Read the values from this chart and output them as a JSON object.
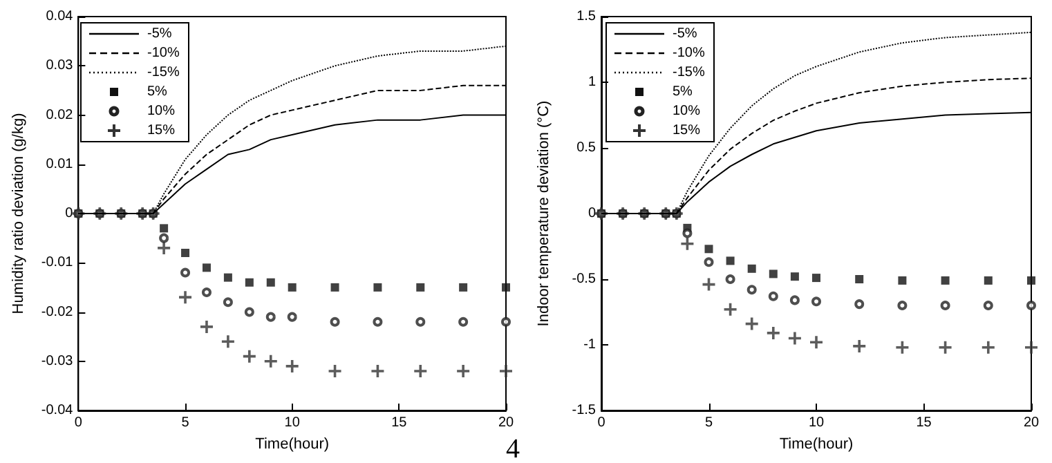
{
  "chart_data": [
    {
      "type": "line",
      "xlabel": "Time(hour)",
      "ylabel": "Humidity ratio deviation (g/kg)",
      "x": [
        0,
        1,
        2,
        3,
        3.5,
        4,
        5,
        6,
        7,
        8,
        9,
        10,
        12,
        14,
        16,
        18,
        20
      ],
      "xlim": [
        0,
        20
      ],
      "xticks": [
        0,
        5,
        10,
        15,
        20
      ],
      "ylim": [
        -0.04,
        0.04
      ],
      "yticks": [
        -0.04,
        -0.03,
        -0.02,
        -0.01,
        0,
        0.01,
        0.02,
        0.03,
        0.04
      ],
      "grid": false,
      "legend": "top left",
      "annotations": [
        "4"
      ],
      "series": [
        {
          "name": "-5%",
          "color": "#000000",
          "line_style": "solid",
          "values": [
            0,
            0,
            0,
            0,
            0,
            0.002,
            0.006,
            0.009,
            0.012,
            0.013,
            0.015,
            0.016,
            0.018,
            0.019,
            0.019,
            0.02,
            0.02
          ]
        },
        {
          "name": "-10%",
          "color": "#000000",
          "line_style": "dashed",
          "values": [
            0,
            0,
            0,
            0,
            0,
            0.003,
            0.008,
            0.012,
            0.015,
            0.018,
            0.02,
            0.021,
            0.023,
            0.025,
            0.025,
            0.026,
            0.026
          ]
        },
        {
          "name": "-15%",
          "color": "#000000",
          "line_style": "dotted",
          "values": [
            0,
            0,
            0,
            0,
            0,
            0.004,
            0.011,
            0.016,
            0.02,
            0.023,
            0.025,
            0.027,
            0.03,
            0.032,
            0.033,
            0.033,
            0.034
          ]
        },
        {
          "name": "5%",
          "type": "scatter",
          "marker": "square",
          "color": "#111111",
          "values": [
            0,
            0,
            0,
            0,
            0,
            -0.003,
            -0.008,
            -0.011,
            -0.013,
            -0.014,
            -0.014,
            -0.015,
            -0.015,
            -0.015,
            -0.015,
            -0.015,
            -0.015
          ]
        },
        {
          "name": "10%",
          "type": "scatter",
          "marker": "circle",
          "color": "#222222",
          "values": [
            0,
            0,
            0,
            0,
            0,
            -0.005,
            -0.012,
            -0.016,
            -0.018,
            -0.02,
            -0.021,
            -0.021,
            -0.022,
            -0.022,
            -0.022,
            -0.022,
            -0.022
          ]
        },
        {
          "name": "15%",
          "type": "scatter",
          "marker": "cross",
          "color": "#333333",
          "values": [
            0,
            0,
            0,
            0,
            0,
            -0.007,
            -0.017,
            -0.023,
            -0.026,
            -0.029,
            -0.03,
            -0.031,
            -0.032,
            -0.032,
            -0.032,
            -0.032,
            -0.032
          ]
        }
      ]
    },
    {
      "type": "line",
      "xlabel": "Time(hour)",
      "ylabel": "Indoor temperature deviation (°C)",
      "x": [
        0,
        1,
        2,
        3,
        3.5,
        4,
        5,
        6,
        7,
        8,
        9,
        10,
        12,
        14,
        16,
        18,
        20
      ],
      "xlim": [
        0,
        20
      ],
      "xticks": [
        0,
        5,
        10,
        15,
        20
      ],
      "ylim": [
        -1.5,
        1.5
      ],
      "yticks": [
        -1.5,
        -1,
        -0.5,
        0,
        0.5,
        1,
        1.5
      ],
      "grid": false,
      "legend": "top left",
      "series": [
        {
          "name": "-5%",
          "color": "#000000",
          "line_style": "solid",
          "values": [
            0,
            0,
            0,
            0,
            0,
            0.09,
            0.24,
            0.36,
            0.45,
            0.53,
            0.58,
            0.63,
            0.69,
            0.72,
            0.75,
            0.76,
            0.77
          ]
        },
        {
          "name": "-10%",
          "color": "#000000",
          "line_style": "dashed",
          "values": [
            0,
            0,
            0,
            0,
            0,
            0.12,
            0.33,
            0.49,
            0.61,
            0.71,
            0.78,
            0.84,
            0.92,
            0.97,
            1.0,
            1.02,
            1.03
          ]
        },
        {
          "name": "-15%",
          "color": "#000000",
          "line_style": "dotted",
          "values": [
            0,
            0,
            0,
            0,
            0,
            0.17,
            0.44,
            0.65,
            0.82,
            0.95,
            1.05,
            1.12,
            1.23,
            1.3,
            1.34,
            1.36,
            1.38
          ]
        },
        {
          "name": "5%",
          "type": "scatter",
          "marker": "square",
          "color": "#111111",
          "values": [
            0,
            0,
            0,
            0,
            0,
            -0.11,
            -0.27,
            -0.36,
            -0.42,
            -0.46,
            -0.48,
            -0.49,
            -0.5,
            -0.51,
            -0.51,
            -0.51,
            -0.51
          ]
        },
        {
          "name": "10%",
          "type": "scatter",
          "marker": "circle",
          "color": "#222222",
          "values": [
            0,
            0,
            0,
            0,
            0,
            -0.15,
            -0.37,
            -0.5,
            -0.58,
            -0.63,
            -0.66,
            -0.67,
            -0.69,
            -0.7,
            -0.7,
            -0.7,
            -0.7
          ]
        },
        {
          "name": "15%",
          "type": "scatter",
          "marker": "cross",
          "color": "#333333",
          "values": [
            0,
            0,
            0,
            0,
            0,
            -0.23,
            -0.54,
            -0.73,
            -0.84,
            -0.91,
            -0.95,
            -0.98,
            -1.01,
            -1.02,
            -1.02,
            -1.02,
            -1.02
          ]
        }
      ]
    }
  ]
}
